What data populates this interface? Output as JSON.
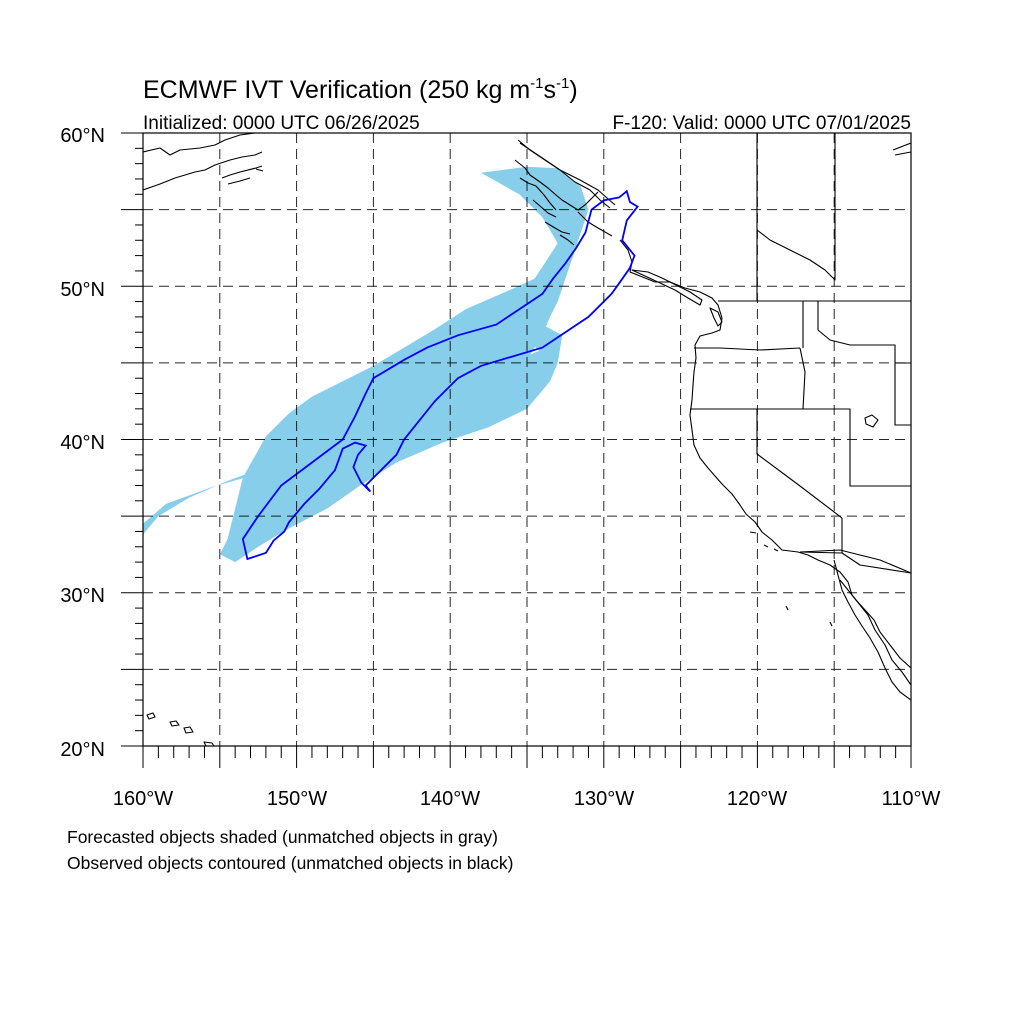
{
  "title": "ECMWF IVT Verification (250 kg m",
  "title_sup1": "-1",
  "title_mid": "s",
  "title_sup2": "-1",
  "title_end": ")",
  "subtitle_left": "Initialized: 0000 UTC 06/26/2025",
  "subtitle_right": "F-120: Valid: 0000 UTC 07/01/2025",
  "lat_labels": [
    {
      "id": "lat-label-60",
      "text": "60°N"
    },
    {
      "id": "lat-label-50",
      "text": "50°N"
    },
    {
      "id": "lat-label-40",
      "text": "40°N"
    },
    {
      "id": "lat-label-30",
      "text": "30°N"
    },
    {
      "id": "lat-label-20",
      "text": "20°N"
    }
  ],
  "lon_labels": [
    {
      "id": "lon-label-160w",
      "text": "160°W"
    },
    {
      "id": "lon-label-150w",
      "text": "150°W"
    },
    {
      "id": "lon-label-140w",
      "text": "140°W"
    },
    {
      "id": "lon-label-130w",
      "text": "130°W"
    },
    {
      "id": "lon-label-120w",
      "text": "120°W"
    },
    {
      "id": "lon-label-110w",
      "text": "110°W"
    }
  ],
  "caption_line1": "Forecasted objects shaded (unmatched objects in gray)",
  "caption_line2": "Observed objects contoured (unmatched objects in black)",
  "map_extent": {
    "lon_min": -160,
    "lon_max": -110,
    "lat_min": 20,
    "lat_max": 60
  },
  "colors": {
    "forecast_fill": "#87ceeb",
    "observed_contour": "#0000ff",
    "coastline": "#000000",
    "grid": "#000000"
  },
  "chart_data": {
    "type": "map",
    "projection": "cylindrical equidistant",
    "grid_lines": "dashed every 5°",
    "forecast_object": {
      "shading": "light blue",
      "polygon_lonlat": [
        [
          -160,
          34.5
        ],
        [
          -158.5,
          35.8
        ],
        [
          -155.5,
          36.9
        ],
        [
          -152,
          37.9
        ],
        [
          -149.5,
          38.8
        ],
        [
          -147,
          40.0
        ],
        [
          -145.5,
          41.0
        ],
        [
          -143,
          42.0
        ],
        [
          -140,
          43.0
        ],
        [
          -137,
          44.0
        ],
        [
          -135,
          45.2
        ],
        [
          -134,
          46.8
        ],
        [
          -133.5,
          48.0
        ],
        [
          -133,
          49.0
        ],
        [
          -132.5,
          50.5
        ],
        [
          -132,
          52.0
        ],
        [
          -131.5,
          53.5
        ],
        [
          -131,
          55.0
        ],
        [
          -131.5,
          56.5
        ],
        [
          -133,
          57.7
        ],
        [
          -135,
          57.8
        ],
        [
          -138,
          57.4
        ],
        [
          -135.5,
          56.0
        ],
        [
          -134,
          54.5
        ],
        [
          -133,
          52.8
        ],
        [
          -134.5,
          50.5
        ],
        [
          -136,
          49.8
        ],
        [
          -139,
          48.5
        ],
        [
          -141,
          47.2
        ],
        [
          -143,
          46.0
        ],
        [
          -145,
          44.8
        ],
        [
          -147,
          43.8
        ],
        [
          -149,
          42.8
        ],
        [
          -150.5,
          41.7
        ],
        [
          -152,
          40.2
        ],
        [
          -153.5,
          37.5
        ],
        [
          -154,
          35.5
        ],
        [
          -154.5,
          33.5
        ],
        [
          -155,
          32.5
        ],
        [
          -154,
          32.0
        ],
        [
          -152.5,
          33.0
        ],
        [
          -150.5,
          34.2
        ],
        [
          -148,
          35.5
        ],
        [
          -146,
          36.9
        ],
        [
          -143.5,
          38.5
        ],
        [
          -140.5,
          39.8
        ],
        [
          -137.5,
          40.8
        ],
        [
          -135,
          42.0
        ],
        [
          -133.5,
          43.8
        ],
        [
          -133,
          45.0
        ],
        [
          -132.7,
          46.8
        ],
        [
          -134,
          47.5
        ],
        [
          -136,
          48.0
        ],
        [
          -135.5,
          47.0
        ],
        [
          -134.2,
          45.8
        ],
        [
          -136,
          45.0
        ],
        [
          -139,
          44.0
        ],
        [
          -142,
          42.8
        ],
        [
          -144,
          41.8
        ],
        [
          -146,
          41.0
        ],
        [
          -148,
          40.0
        ],
        [
          -150,
          39.2
        ],
        [
          -152,
          38.2
        ],
        [
          -154.5,
          37.3
        ],
        [
          -157,
          36.2
        ],
        [
          -159,
          35.0
        ],
        [
          -160,
          33.8
        ]
      ]
    },
    "observed_object": {
      "contour": "blue",
      "outline_lonlat": [
        [
          -153.2,
          32.2
        ],
        [
          -153.5,
          33.5
        ],
        [
          -152.5,
          35.0
        ],
        [
          -151,
          37.0
        ],
        [
          -149,
          38.5
        ],
        [
          -147,
          40.0
        ],
        [
          -146.2,
          41.5
        ],
        [
          -145.5,
          43.0
        ],
        [
          -145,
          44.0
        ],
        [
          -143,
          45.2
        ],
        [
          -141.5,
          46.0
        ],
        [
          -139.5,
          46.8
        ],
        [
          -137,
          47.5
        ],
        [
          -135.5,
          48.5
        ],
        [
          -134,
          49.5
        ],
        [
          -133.3,
          50.5
        ],
        [
          -132.5,
          51.5
        ],
        [
          -131.8,
          52.5
        ],
        [
          -131.2,
          53.5
        ],
        [
          -130.8,
          55.0
        ],
        [
          -130.0,
          55.6
        ],
        [
          -129.0,
          55.8
        ],
        [
          -128.5,
          56.2
        ],
        [
          -128.3,
          55.5
        ],
        [
          -127.8,
          55.2
        ],
        [
          -128.5,
          54.3
        ],
        [
          -128.8,
          53.0
        ],
        [
          -128.0,
          52.0
        ],
        [
          -128.3,
          51.2
        ],
        [
          -129.0,
          50.2
        ],
        [
          -129.5,
          49.5
        ],
        [
          -131.0,
          48.0
        ],
        [
          -132.5,
          47.0
        ],
        [
          -134.0,
          46.0
        ],
        [
          -136.0,
          45.4
        ],
        [
          -138.0,
          44.8
        ],
        [
          -139.5,
          44.0
        ],
        [
          -141.0,
          42.5
        ],
        [
          -142.2,
          41.0
        ],
        [
          -143.0,
          40.0
        ],
        [
          -143.5,
          39.0
        ],
        [
          -144.5,
          38.0
        ],
        [
          -145.5,
          37.0
        ],
        [
          -145.2,
          36.6
        ],
        [
          -145.8,
          37.2
        ],
        [
          -146.3,
          38.2
        ],
        [
          -146.0,
          39.0
        ],
        [
          -145.5,
          39.6
        ],
        [
          -146.2,
          39.8
        ],
        [
          -147,
          39.4
        ],
        [
          -147.5,
          38.0
        ],
        [
          -148.5,
          36.8
        ],
        [
          -149.5,
          35.8
        ],
        [
          -150.5,
          34.6
        ],
        [
          -150.8,
          34.0
        ],
        [
          -151.5,
          33.4
        ],
        [
          -152.0,
          32.6
        ],
        [
          -153.2,
          32.2
        ]
      ]
    }
  }
}
